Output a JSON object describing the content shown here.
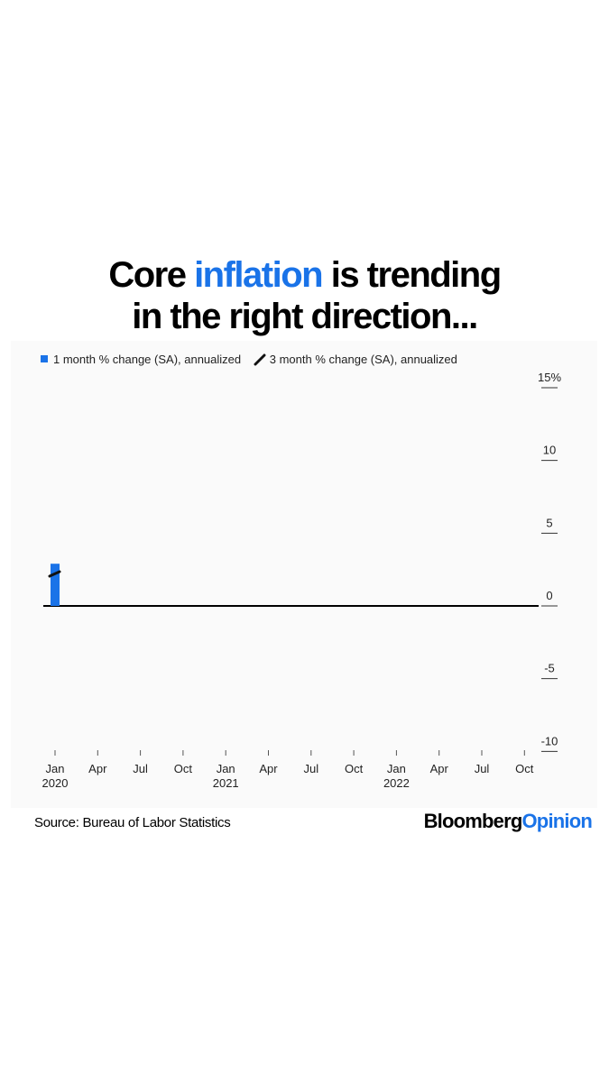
{
  "headline": {
    "part1": "Core ",
    "accent": "inflation",
    "part2": " is trending",
    "line2": "in the right direction..."
  },
  "colors": {
    "accent": "#1a73e8",
    "line": "#111111",
    "panel": "#fafafa"
  },
  "chart_data": {
    "type": "bar",
    "series": [
      {
        "name": "1 month % change (SA), annualized",
        "kind": "bar",
        "points": [
          {
            "x": "2020-01",
            "y": 2.9
          }
        ]
      },
      {
        "name": "3 month % change (SA), annualized",
        "kind": "line",
        "points": [
          {
            "x": "2020-01",
            "y": 2.2
          }
        ]
      }
    ],
    "x_ticks": [
      {
        "label": "Jan",
        "sublabel": "2020"
      },
      {
        "label": "Apr"
      },
      {
        "label": "Jul"
      },
      {
        "label": "Oct"
      },
      {
        "label": "Jan",
        "sublabel": "2021"
      },
      {
        "label": "Apr"
      },
      {
        "label": "Jul"
      },
      {
        "label": "Oct"
      },
      {
        "label": "Jan",
        "sublabel": "2022"
      },
      {
        "label": "Apr"
      },
      {
        "label": "Jul"
      },
      {
        "label": "Oct"
      }
    ],
    "y_ticks": [
      "15%",
      "10",
      "5",
      "0",
      "-5",
      "-10"
    ],
    "ylim": [
      -10,
      15
    ],
    "grid": false,
    "legend_position": "top-left"
  },
  "footer": {
    "source": "Source: Bureau of Labor Statistics",
    "brand_part1": "Bloomberg",
    "brand_part2": "Opinion"
  }
}
